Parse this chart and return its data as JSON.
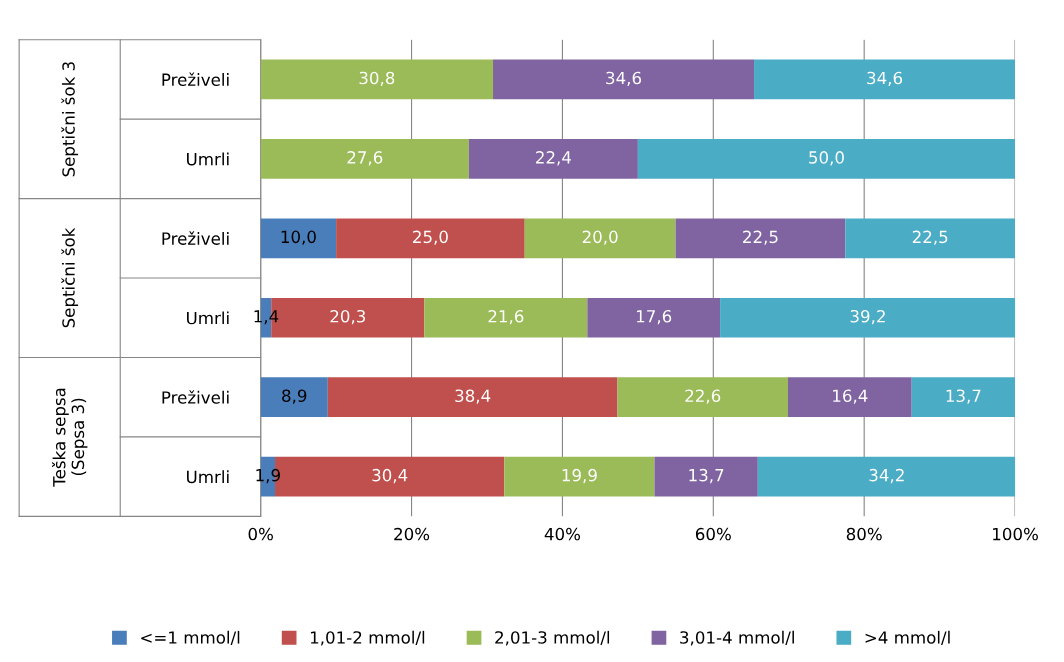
{
  "chart_data": {
    "type": "bar",
    "orientation": "horizontal",
    "stacked": true,
    "categories": [
      "Preživeli",
      "Umrli",
      "Preživeli",
      "Umrli",
      "Preživeli",
      "Umrli"
    ],
    "annotations": [
      "Septični šok 3",
      "Septični šok",
      "Teška sepsa (Sepsa 3)"
    ],
    "series": [
      {
        "name": "<=1 mmol/l",
        "color": "#4a7ebb",
        "values": [
          null,
          null,
          10.0,
          1.4,
          8.9,
          1.9
        ],
        "value_labels": [
          null,
          null,
          "10,0",
          "1,4",
          "8,9",
          "1,9"
        ]
      },
      {
        "name": "1,01-2 mmol/l",
        "color": "#c0504d",
        "values": [
          null,
          null,
          25.0,
          20.3,
          38.4,
          30.4
        ],
        "value_labels": [
          null,
          null,
          "25,0",
          "20,3",
          "38,4",
          "30,4"
        ]
      },
      {
        "name": "2,01-3 mmol/l",
        "color": "#9bbb59",
        "values": [
          30.8,
          27.6,
          20.0,
          21.6,
          22.6,
          19.9
        ],
        "value_labels": [
          "30,8",
          "27,6",
          "20,0",
          "21,6",
          "22,6",
          "19,9"
        ]
      },
      {
        "name": "3,01-4 mmol/l",
        "color": "#8064a2",
        "values": [
          34.6,
          22.4,
          22.5,
          17.6,
          16.4,
          13.7
        ],
        "value_labels": [
          "34,6",
          "22,4",
          "22,5",
          "17,6",
          "16,4",
          "13,7"
        ]
      },
      {
        "name": ">4 mmol/l",
        "color": "#4bacc6",
        "values": [
          34.6,
          50.0,
          22.5,
          39.2,
          13.7,
          34.2
        ],
        "value_labels": [
          "34,6",
          "50,0",
          "22,5",
          "39,2",
          "13,7",
          "34,2"
        ]
      }
    ],
    "xlim": [
      0,
      100
    ],
    "xticks": [
      {
        "value": 0,
        "label": "0%"
      },
      {
        "value": 20,
        "label": "20%"
      },
      {
        "value": 40,
        "label": "40%"
      },
      {
        "value": 60,
        "label": "60%"
      },
      {
        "value": 80,
        "label": "80%"
      },
      {
        "value": 100,
        "label": "100%"
      }
    ],
    "grid": "x",
    "legend": "bottom"
  }
}
